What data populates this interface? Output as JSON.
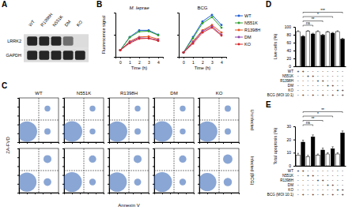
{
  "chart_data": [
    {
      "type": "blot",
      "panel": "A",
      "lanes": [
        "WT",
        "R1398H",
        "N551K",
        "DM",
        "KO"
      ],
      "rows": [
        {
          "label": "LRRK2",
          "values": [
            1,
            1,
            1,
            0.6,
            0
          ]
        },
        {
          "label": "GAPDH",
          "values": [
            1,
            1,
            1,
            1,
            1
          ]
        }
      ],
      "intensity_range": [
        0,
        1
      ]
    },
    {
      "type": "line",
      "panel": "B",
      "x": [
        0,
        1,
        2,
        3,
        4
      ],
      "xlim": [
        -0.5,
        4.5
      ],
      "xticks": [
        0,
        1,
        2,
        3,
        4
      ],
      "ylim": [
        0,
        1
      ],
      "yticks": [
        0,
        0.5,
        1
      ],
      "tick_labels": "x",
      "x_label": "Time (h)",
      "y_label": "Fluorescence signal",
      "legend": "right",
      "series": [
        {
          "name": "WT",
          "color": "#1f5fd6",
          "marker": "circle"
        },
        {
          "name": "N551K",
          "color": "#2ca02c",
          "marker": "circle"
        },
        {
          "name": "R1398H",
          "color": "#e8541e",
          "marker": "circle"
        },
        {
          "name": "DM",
          "color": "#8e44ad",
          "marker": "circle"
        },
        {
          "name": "KO",
          "color": "#d62728",
          "marker": "circle"
        }
      ],
      "subplots": [
        {
          "title": "M. leprae",
          "values": [
            [
              0.15,
              0.45,
              0.6,
              0.6,
              0.5
            ],
            [
              0.15,
              0.44,
              0.57,
              0.58,
              0.49
            ],
            [
              0.15,
              0.35,
              0.45,
              0.46,
              0.4
            ],
            [
              0.15,
              0.33,
              0.43,
              0.42,
              0.38
            ],
            [
              0.15,
              0.31,
              0.41,
              0.42,
              0.36
            ]
          ]
        },
        {
          "title": "BCG",
          "values": [
            [
              0.1,
              0.45,
              0.8,
              0.95,
              0.72
            ],
            [
              0.1,
              0.42,
              0.76,
              0.9,
              0.66
            ],
            [
              0.1,
              0.35,
              0.6,
              0.72,
              0.55
            ],
            [
              0.1,
              0.33,
              0.58,
              0.69,
              0.5
            ],
            [
              0.1,
              0.3,
              0.55,
              0.66,
              0.48
            ]
          ]
        }
      ]
    },
    {
      "type": "scatter",
      "panel": "C",
      "columns": [
        "WT",
        "N551K",
        "R1398H",
        "DM",
        "KO"
      ],
      "rows": [
        "Uninfected",
        "Infected (BCG)"
      ],
      "x_label": "Annexin V",
      "y_label": "ZA-FVD",
      "xlim": [
        0,
        5
      ],
      "ylim": [
        0,
        5
      ],
      "xticks": [
        1,
        2,
        3,
        4
      ],
      "yticks": [
        1,
        2,
        3,
        4
      ],
      "tick_labels": false,
      "gate_x": 2.5,
      "gate_y": 2.5,
      "plots": [
        [
          {
            "x": [
              1,
              3.6,
              3.6
            ],
            "values": [
              1.2,
              1.2,
              3.8
            ],
            "sizes": [
              85,
              8,
              7
            ]
          },
          {
            "x": [
              1,
              3.6,
              3.6
            ],
            "values": [
              1.2,
              1.2,
              3.8
            ],
            "sizes": [
              86,
              7,
              7
            ]
          },
          {
            "x": [
              1,
              3.6,
              3.6
            ],
            "values": [
              1.2,
              1.2,
              3.8
            ],
            "sizes": [
              85,
              8,
              7
            ]
          },
          {
            "x": [
              1,
              3.6,
              3.6
            ],
            "values": [
              1.2,
              1.2,
              3.8
            ],
            "sizes": [
              86,
              7,
              7
            ]
          },
          {
            "x": [
              1,
              3.6,
              3.6
            ],
            "values": [
              1.2,
              1.2,
              3.8
            ],
            "sizes": [
              84,
              8,
              8
            ]
          }
        ],
        [
          {
            "x": [
              1,
              3.6,
              3.6
            ],
            "values": [
              1.2,
              1.2,
              3.8
            ],
            "sizes": [
              75,
              12,
              13
            ]
          },
          {
            "x": [
              1,
              3.6,
              3.6
            ],
            "values": [
              1.2,
              1.2,
              3.8
            ],
            "sizes": [
              80,
              9,
              11
            ]
          },
          {
            "x": [
              1,
              3.6,
              3.6
            ],
            "values": [
              1.2,
              1.2,
              3.8
            ],
            "sizes": [
              77,
              10,
              13
            ]
          },
          {
            "x": [
              1,
              3.6,
              3.6
            ],
            "values": [
              1.2,
              1.2,
              3.8
            ],
            "sizes": [
              80,
              9,
              11
            ]
          },
          {
            "x": [
              1,
              3.6,
              3.6
            ],
            "values": [
              1.2,
              1.2,
              3.8
            ],
            "sizes": [
              68,
              14,
              18
            ]
          }
        ]
      ]
    },
    {
      "type": "bar",
      "panel": "D",
      "y_label": "Live cells (%)",
      "categories": [
        null,
        null,
        null,
        null,
        null,
        null,
        null,
        null,
        null,
        null
      ],
      "values": [
        88,
        76,
        89,
        82,
        88,
        79,
        87,
        84,
        88,
        69
      ],
      "errors": [
        2,
        2,
        1.5,
        2,
        2,
        2,
        1.5,
        2,
        2,
        2
      ],
      "colors": [
        "#ffffff",
        "#000000",
        "#ffffff",
        "#000000",
        "#ffffff",
        "#000000",
        "#ffffff",
        "#000000",
        "#ffffff",
        "#000000"
      ],
      "ylim": [
        0,
        100
      ],
      "yticks": [
        0,
        20,
        40,
        60,
        80,
        100
      ],
      "annotations": [
        {
          "from": 1,
          "to": 3,
          "label": "ns"
        },
        {
          "from": 1,
          "to": 5,
          "label": "**"
        },
        {
          "from": 1,
          "to": 7,
          "label": "*"
        },
        {
          "from": 1,
          "to": 9,
          "label": "***"
        }
      ],
      "table": {
        "rows": [
          {
            "label": "WT",
            "signs": [
              "+",
              "+",
              "-",
              "-",
              "-",
              "-",
              "-",
              "-",
              "-",
              "-"
            ]
          },
          {
            "label": "N551K",
            "signs": [
              "-",
              "-",
              "+",
              "+",
              "-",
              "-",
              "-",
              "-",
              "-",
              "-"
            ]
          },
          {
            "label": "R1398H",
            "signs": [
              "-",
              "-",
              "-",
              "-",
              "+",
              "+",
              "-",
              "-",
              "-",
              "-"
            ]
          },
          {
            "label": "DM",
            "signs": [
              "-",
              "-",
              "-",
              "-",
              "-",
              "-",
              "+",
              "+",
              "-",
              "-"
            ]
          },
          {
            "label": "KO",
            "signs": [
              "-",
              "-",
              "-",
              "-",
              "-",
              "-",
              "-",
              "-",
              "+",
              "+"
            ]
          },
          {
            "label": "BCG (MOI 10:1)",
            "signs": [
              "-",
              "+",
              "-",
              "+",
              "-",
              "+",
              "-",
              "+",
              "-",
              "+"
            ]
          }
        ]
      }
    },
    {
      "type": "bar",
      "panel": "E",
      "y_label": "Total apoptosis (%)",
      "categories": [
        null,
        null,
        null,
        null,
        null,
        null,
        null,
        null,
        null,
        null
      ],
      "values": [
        8,
        18,
        7,
        22,
        8,
        12,
        9,
        13,
        9,
        25
      ],
      "errors": [
        1.5,
        1.5,
        1,
        1.5,
        1,
        1.5,
        1,
        1.5,
        1,
        1.5
      ],
      "colors": [
        "#ffffff",
        "#000000",
        "#ffffff",
        "#000000",
        "#ffffff",
        "#000000",
        "#ffffff",
        "#000000",
        "#ffffff",
        "#000000"
      ],
      "ylim": [
        0,
        30
      ],
      "yticks": [
        0,
        10,
        20,
        30
      ],
      "annotations": [
        {
          "from": 1,
          "to": 3,
          "label": "ns"
        },
        {
          "from": 1,
          "to": 5,
          "label": "**"
        },
        {
          "from": 1,
          "to": 7,
          "label": "*"
        },
        {
          "from": 1,
          "to": 9,
          "label": "**"
        }
      ],
      "table": {
        "rows": [
          {
            "label": "WT",
            "signs": [
              "+",
              "+",
              "-",
              "-",
              "-",
              "-",
              "-",
              "-",
              "-",
              "-"
            ]
          },
          {
            "label": "N551K",
            "signs": [
              "-",
              "-",
              "+",
              "+",
              "-",
              "-",
              "-",
              "-",
              "-",
              "-"
            ]
          },
          {
            "label": "R1398H",
            "signs": [
              "-",
              "-",
              "-",
              "-",
              "+",
              "+",
              "-",
              "-",
              "-",
              "-"
            ]
          },
          {
            "label": "DM",
            "signs": [
              "-",
              "-",
              "-",
              "-",
              "-",
              "-",
              "+",
              "+",
              "-",
              "-"
            ]
          },
          {
            "label": "KO",
            "signs": [
              "-",
              "-",
              "-",
              "-",
              "-",
              "-",
              "-",
              "-",
              "+",
              "+"
            ]
          },
          {
            "label": "BCG (MOI 10:1)",
            "signs": [
              "-",
              "+",
              "-",
              "+",
              "-",
              "+",
              "-",
              "+",
              "-",
              "+"
            ]
          }
        ]
      }
    }
  ]
}
